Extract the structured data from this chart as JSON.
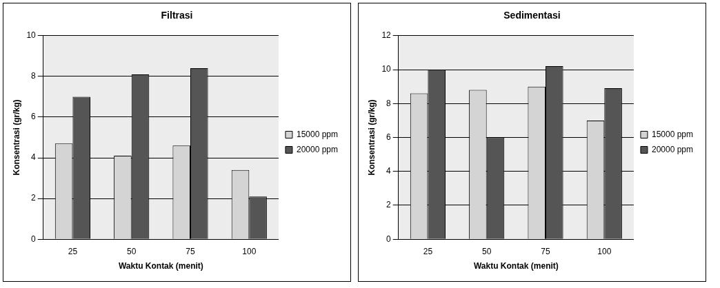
{
  "chart_data": [
    {
      "type": "bar",
      "title": "Filtrasi",
      "xlabel": "Waktu Kontak (menit)",
      "ylabel": "Konsentrasi (gr/kg)",
      "categories": [
        "25",
        "50",
        "75",
        "100"
      ],
      "series": [
        {
          "name": "15000 ppm",
          "color": "#d4d4d4",
          "values": [
            4.7,
            4.1,
            4.6,
            3.4
          ]
        },
        {
          "name": "20000 ppm",
          "color": "#555555",
          "values": [
            7.0,
            8.1,
            8.4,
            2.1
          ]
        }
      ],
      "ylim": [
        0,
        10
      ],
      "yticks": [
        0,
        2,
        4,
        6,
        8,
        10
      ],
      "grid": "y",
      "legend": "right"
    },
    {
      "type": "bar",
      "title": "Sedimentasi",
      "xlabel": "Waktu Kontak (menit)",
      "ylabel": "Konsentrasi (gr/kg)",
      "categories": [
        "25",
        "50",
        "75",
        "100"
      ],
      "series": [
        {
          "name": "15000 ppm",
          "color": "#d4d4d4",
          "values": [
            8.6,
            8.8,
            9.0,
            7.0
          ]
        },
        {
          "name": "20000 ppm",
          "color": "#555555",
          "values": [
            10.0,
            6.0,
            10.2,
            8.9
          ]
        }
      ],
      "ylim": [
        0,
        12
      ],
      "yticks": [
        0,
        2,
        4,
        6,
        8,
        10,
        12
      ],
      "grid": "y",
      "legend": "right"
    }
  ]
}
